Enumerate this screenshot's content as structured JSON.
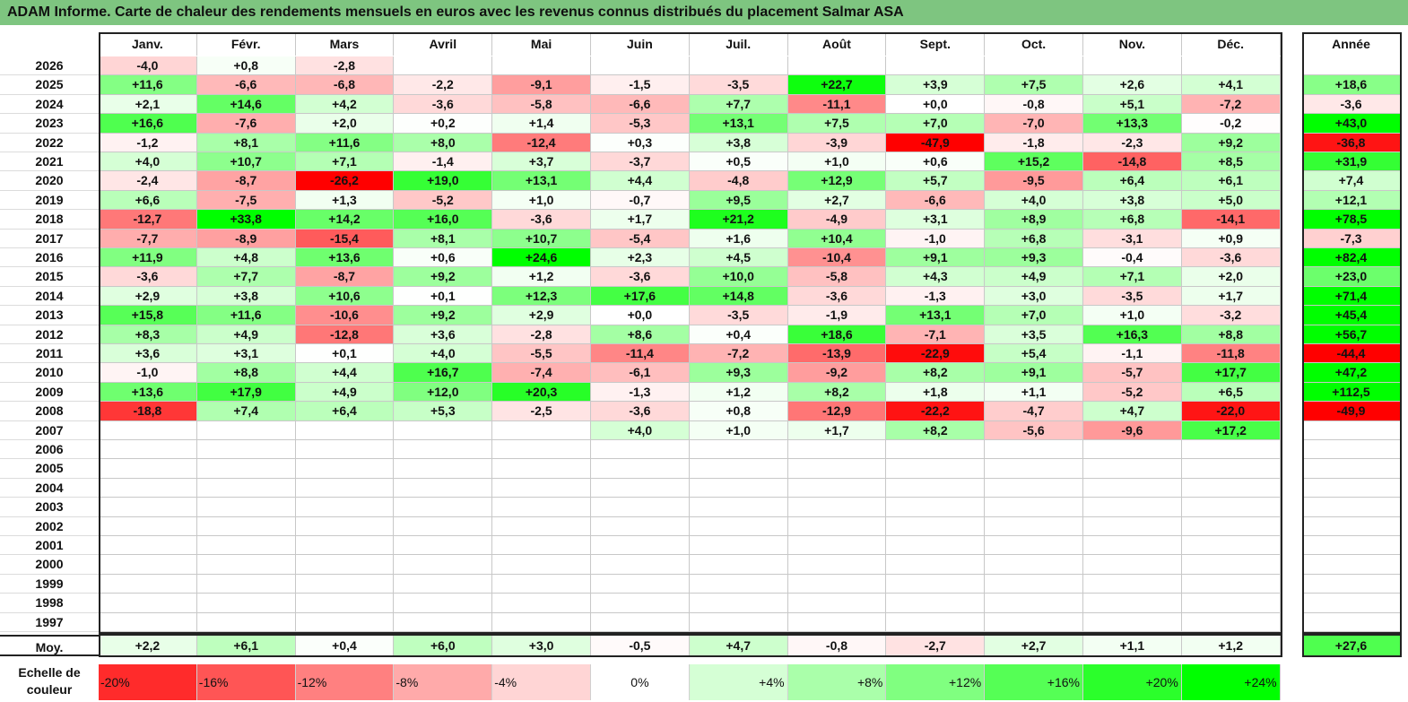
{
  "title": "ADAM Informe. Carte de chaleur des rendements mensuels en euros avec les revenus connus distribués du placement Salmar ASA",
  "chart_data": {
    "type": "heatmap",
    "title": "ADAM Informe. Carte de chaleur des rendements mensuels en euros avec les revenus connus distribués du placement Salmar ASA",
    "months": [
      "Janv.",
      "Févr.",
      "Mars",
      "Avril",
      "Mai",
      "Juin",
      "Juil.",
      "Août",
      "Sept.",
      "Oct.",
      "Nov.",
      "Déc."
    ],
    "year_header": "Année",
    "rows": [
      {
        "year": "2026",
        "values": [
          "-4,0",
          "+0,8",
          "-2,8",
          "",
          "",
          "",
          "",
          "",
          "",
          "",
          "",
          ""
        ],
        "annual": ""
      },
      {
        "year": "2025",
        "values": [
          "+11,6",
          "-6,6",
          "-6,8",
          "-2,2",
          "-9,1",
          "-1,5",
          "-3,5",
          "+22,7",
          "+3,9",
          "+7,5",
          "+2,6",
          "+4,1"
        ],
        "annual": "+18,6"
      },
      {
        "year": "2024",
        "values": [
          "+2,1",
          "+14,6",
          "+4,2",
          "-3,6",
          "-5,8",
          "-6,6",
          "+7,7",
          "-11,1",
          "+0,0",
          "-0,8",
          "+5,1",
          "-7,2"
        ],
        "annual": "-3,6"
      },
      {
        "year": "2023",
        "values": [
          "+16,6",
          "-7,6",
          "+2,0",
          "+0,2",
          "+1,4",
          "-5,3",
          "+13,1",
          "+7,5",
          "+7,0",
          "-7,0",
          "+13,3",
          "-0,2"
        ],
        "annual": "+43,0"
      },
      {
        "year": "2022",
        "values": [
          "-1,2",
          "+8,1",
          "+11,6",
          "+8,0",
          "-12,4",
          "+0,3",
          "+3,8",
          "-3,9",
          "-47,9",
          "-1,8",
          "-2,3",
          "+9,2"
        ],
        "annual": "-36,8"
      },
      {
        "year": "2021",
        "values": [
          "+4,0",
          "+10,7",
          "+7,1",
          "-1,4",
          "+3,7",
          "-3,7",
          "+0,5",
          "+1,0",
          "+0,6",
          "+15,2",
          "-14,8",
          "+8,5"
        ],
        "annual": "+31,9"
      },
      {
        "year": "2020",
        "values": [
          "-2,4",
          "-8,7",
          "-26,2",
          "+19,0",
          "+13,1",
          "+4,4",
          "-4,8",
          "+12,9",
          "+5,7",
          "-9,5",
          "+6,4",
          "+6,1"
        ],
        "annual": "+7,4"
      },
      {
        "year": "2019",
        "values": [
          "+6,6",
          "-7,5",
          "+1,3",
          "-5,2",
          "+1,0",
          "-0,7",
          "+9,5",
          "+2,7",
          "-6,6",
          "+4,0",
          "+3,8",
          "+5,0"
        ],
        "annual": "+12,1"
      },
      {
        "year": "2018",
        "values": [
          "-12,7",
          "+33,8",
          "+14,2",
          "+16,0",
          "-3,6",
          "+1,7",
          "+21,2",
          "-4,9",
          "+3,1",
          "+8,9",
          "+6,8",
          "-14,1"
        ],
        "annual": "+78,5"
      },
      {
        "year": "2017",
        "values": [
          "-7,7",
          "-8,9",
          "-15,4",
          "+8,1",
          "+10,7",
          "-5,4",
          "+1,6",
          "+10,4",
          "-1,0",
          "+6,8",
          "-3,1",
          "+0,9"
        ],
        "annual": "-7,3"
      },
      {
        "year": "2016",
        "values": [
          "+11,9",
          "+4,8",
          "+13,6",
          "+0,6",
          "+24,6",
          "+2,3",
          "+4,5",
          "-10,4",
          "+9,1",
          "+9,3",
          "-0,4",
          "-3,6"
        ],
        "annual": "+82,4"
      },
      {
        "year": "2015",
        "values": [
          "-3,6",
          "+7,7",
          "-8,7",
          "+9,2",
          "+1,2",
          "-3,6",
          "+10,0",
          "-5,8",
          "+4,3",
          "+4,9",
          "+7,1",
          "+2,0"
        ],
        "annual": "+23,0"
      },
      {
        "year": "2014",
        "values": [
          "+2,9",
          "+3,8",
          "+10,6",
          "+0,1",
          "+12,3",
          "+17,6",
          "+14,8",
          "-3,6",
          "-1,3",
          "+3,0",
          "-3,5",
          "+1,7"
        ],
        "annual": "+71,4"
      },
      {
        "year": "2013",
        "values": [
          "+15,8",
          "+11,6",
          "-10,6",
          "+9,2",
          "+2,9",
          "+0,0",
          "-3,5",
          "-1,9",
          "+13,1",
          "+7,0",
          "+1,0",
          "-3,2"
        ],
        "annual": "+45,4"
      },
      {
        "year": "2012",
        "values": [
          "+8,3",
          "+4,9",
          "-12,8",
          "+3,6",
          "-2,8",
          "+8,6",
          "+0,4",
          "+18,6",
          "-7,1",
          "+3,5",
          "+16,3",
          "+8,8"
        ],
        "annual": "+56,7"
      },
      {
        "year": "2011",
        "values": [
          "+3,6",
          "+3,1",
          "+0,1",
          "+4,0",
          "-5,5",
          "-11,4",
          "-7,2",
          "-13,9",
          "-22,9",
          "+5,4",
          "-1,1",
          "-11,8"
        ],
        "annual": "-44,4"
      },
      {
        "year": "2010",
        "values": [
          "-1,0",
          "+8,8",
          "+4,4",
          "+16,7",
          "-7,4",
          "-6,1",
          "+9,3",
          "-9,2",
          "+8,2",
          "+9,1",
          "-5,7",
          "+17,7"
        ],
        "annual": "+47,2"
      },
      {
        "year": "2009",
        "values": [
          "+13,6",
          "+17,9",
          "+4,9",
          "+12,0",
          "+20,3",
          "-1,3",
          "+1,2",
          "+8,2",
          "+1,8",
          "+1,1",
          "-5,2",
          "+6,5"
        ],
        "annual": "+112,5"
      },
      {
        "year": "2008",
        "values": [
          "-18,8",
          "+7,4",
          "+6,4",
          "+5,3",
          "-2,5",
          "-3,6",
          "+0,8",
          "-12,9",
          "-22,2",
          "-4,7",
          "+4,7",
          "-22,0"
        ],
        "annual": "-49,9"
      },
      {
        "year": "2007",
        "values": [
          "",
          "",
          "",
          "",
          "",
          "+4,0",
          "+1,0",
          "+1,7",
          "+8,2",
          "-5,6",
          "-9,6",
          "+17,2"
        ],
        "annual": ""
      },
      {
        "year": "2006",
        "values": [
          "",
          "",
          "",
          "",
          "",
          "",
          "",
          "",
          "",
          "",
          "",
          ""
        ],
        "annual": ""
      },
      {
        "year": "2005",
        "values": [
          "",
          "",
          "",
          "",
          "",
          "",
          "",
          "",
          "",
          "",
          "",
          ""
        ],
        "annual": ""
      },
      {
        "year": "2004",
        "values": [
          "",
          "",
          "",
          "",
          "",
          "",
          "",
          "",
          "",
          "",
          "",
          ""
        ],
        "annual": ""
      },
      {
        "year": "2003",
        "values": [
          "",
          "",
          "",
          "",
          "",
          "",
          "",
          "",
          "",
          "",
          "",
          ""
        ],
        "annual": ""
      },
      {
        "year": "2002",
        "values": [
          "",
          "",
          "",
          "",
          "",
          "",
          "",
          "",
          "",
          "",
          "",
          ""
        ],
        "annual": ""
      },
      {
        "year": "2001",
        "values": [
          "",
          "",
          "",
          "",
          "",
          "",
          "",
          "",
          "",
          "",
          "",
          ""
        ],
        "annual": ""
      },
      {
        "year": "2000",
        "values": [
          "",
          "",
          "",
          "",
          "",
          "",
          "",
          "",
          "",
          "",
          "",
          ""
        ],
        "annual": ""
      },
      {
        "year": "1999",
        "values": [
          "",
          "",
          "",
          "",
          "",
          "",
          "",
          "",
          "",
          "",
          "",
          ""
        ],
        "annual": ""
      },
      {
        "year": "1998",
        "values": [
          "",
          "",
          "",
          "",
          "",
          "",
          "",
          "",
          "",
          "",
          "",
          ""
        ],
        "annual": ""
      },
      {
        "year": "1997",
        "values": [
          "",
          "",
          "",
          "",
          "",
          "",
          "",
          "",
          "",
          "",
          "",
          ""
        ],
        "annual": ""
      }
    ],
    "average": {
      "label": "Moy.",
      "values": [
        "+2,2",
        "+6,1",
        "+0,4",
        "+6,0",
        "+3,0",
        "-0,5",
        "+4,7",
        "-0,8",
        "-2,7",
        "+2,7",
        "+1,1",
        "+1,2"
      ],
      "annual": "+27,6"
    },
    "color_scale": {
      "label_line1": "Echelle de",
      "label_line2": "couleur",
      "stops": [
        "-20%",
        "-16%",
        "-12%",
        "-8%",
        "-4%",
        "0%",
        "+4%",
        "+8%",
        "+12%",
        "+16%",
        "+20%",
        "+24%"
      ]
    }
  },
  "colors": {
    "title_bg": "#7ec580",
    "neg_full": "#ff0000",
    "pos_full": "#00ff00",
    "neutral": "#ffffff"
  }
}
